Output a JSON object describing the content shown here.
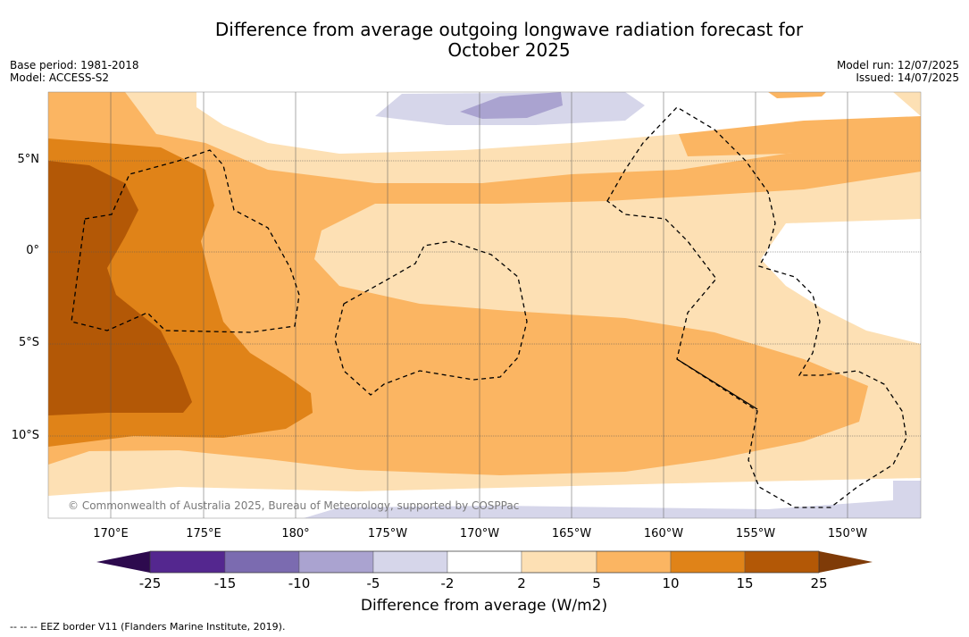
{
  "title_line1": "Difference from average outgoing longwave radiation forecast for",
  "title_line2": "October 2025",
  "base_period": "Base period: 1981-2018",
  "model": "Model: ACCESS-S2",
  "model_run": "Model run: 12/07/2025",
  "issued": "Issued: 14/07/2025",
  "lat_labels": [
    "5°N",
    "0°",
    "5°S",
    "10°S"
  ],
  "lon_labels": [
    "170°E",
    "175°E",
    "180°",
    "175°W",
    "170°W",
    "165°W",
    "160°W",
    "155°W",
    "150°W"
  ],
  "copyright": "© Commonwealth of Australia 2025, Bureau of Meteorology, supported by COSPPac",
  "colorbar": {
    "title": "Difference from average (W/m2)",
    "ticks": [
      "-25",
      "-15",
      "-10",
      "-5",
      "-2",
      "2",
      "5",
      "10",
      "15",
      "25"
    ],
    "colors": [
      "#2d0a4e",
      "#54278f",
      "#7b6bb0",
      "#aaa3d0",
      "#d6d6ea",
      "#ffffff",
      "#fde0b4",
      "#fbb562",
      "#e08318",
      "#b35806",
      "#7f3b08"
    ]
  },
  "footnote": "--  --  -- EEZ border V11 (Flanders Marine Institute, 2019)."
}
